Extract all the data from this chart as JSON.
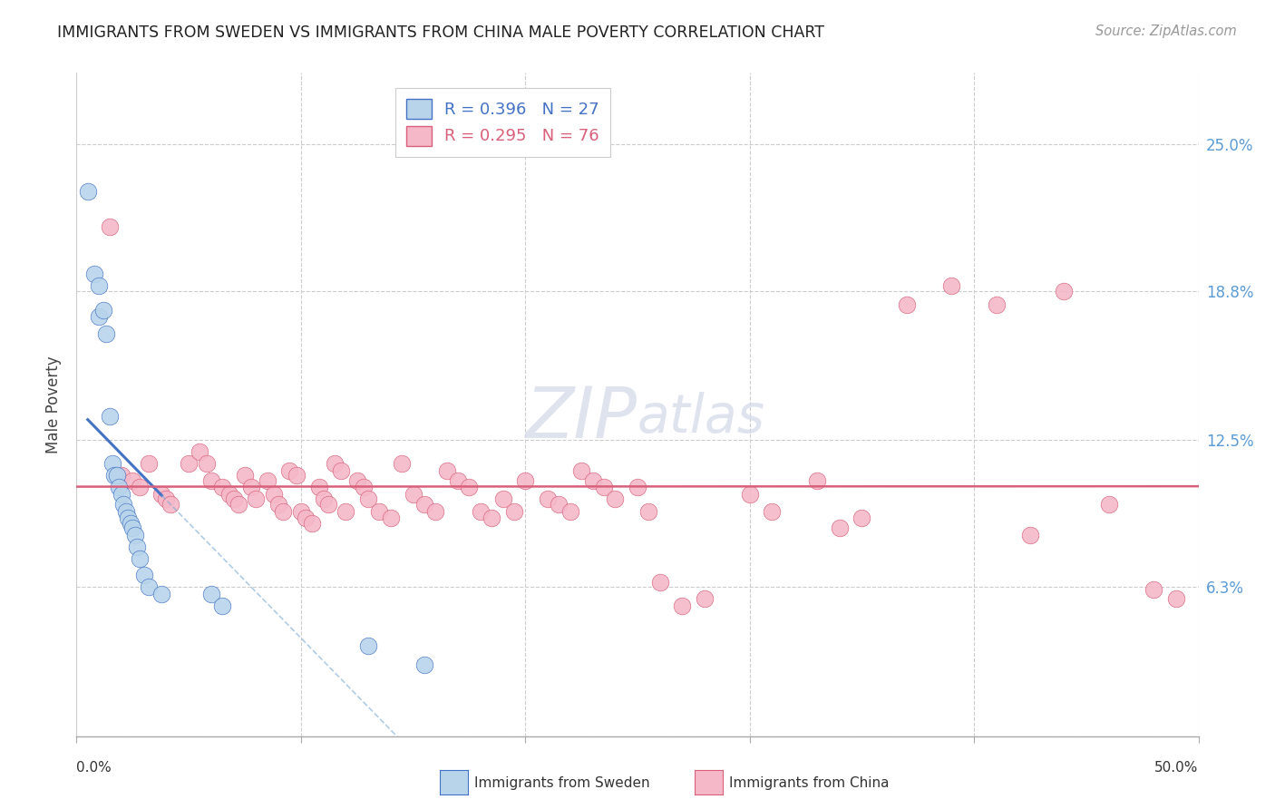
{
  "title": "IMMIGRANTS FROM SWEDEN VS IMMIGRANTS FROM CHINA MALE POVERTY CORRELATION CHART",
  "source": "Source: ZipAtlas.com",
  "ylabel": "Male Poverty",
  "yticks": [
    0.0,
    0.063,
    0.125,
    0.188,
    0.25
  ],
  "ytick_labels": [
    "",
    "6.3%",
    "12.5%",
    "18.8%",
    "25.0%"
  ],
  "xrange": [
    0.0,
    0.5
  ],
  "yrange": [
    0.0,
    0.28
  ],
  "legend_sweden": "R = 0.396   N = 27",
  "legend_china": "R = 0.295   N = 76",
  "sweden_color": "#b8d4eb",
  "china_color": "#f5b8c8",
  "sweden_line_color": "#4472c4",
  "china_line_color": "#d9607a",
  "watermark_color": "#d0d8e8",
  "sweden_x": [
    0.005,
    0.008,
    0.01,
    0.01,
    0.012,
    0.013,
    0.015,
    0.016,
    0.017,
    0.018,
    0.019,
    0.02,
    0.021,
    0.022,
    0.023,
    0.024,
    0.025,
    0.026,
    0.027,
    0.028,
    0.03,
    0.032,
    0.038,
    0.06,
    0.065,
    0.13,
    0.155
  ],
  "sweden_y": [
    0.23,
    0.195,
    0.19,
    0.177,
    0.18,
    0.17,
    0.135,
    0.115,
    0.11,
    0.11,
    0.105,
    0.102,
    0.098,
    0.095,
    0.092,
    0.09,
    0.088,
    0.085,
    0.08,
    0.075,
    0.068,
    0.063,
    0.06,
    0.06,
    0.055,
    0.038,
    0.03
  ],
  "china_x": [
    0.015,
    0.02,
    0.025,
    0.028,
    0.032,
    0.038,
    0.04,
    0.042,
    0.05,
    0.055,
    0.058,
    0.06,
    0.065,
    0.068,
    0.07,
    0.072,
    0.075,
    0.078,
    0.08,
    0.085,
    0.088,
    0.09,
    0.092,
    0.095,
    0.098,
    0.1,
    0.102,
    0.105,
    0.108,
    0.11,
    0.112,
    0.115,
    0.118,
    0.12,
    0.125,
    0.128,
    0.13,
    0.135,
    0.14,
    0.145,
    0.15,
    0.155,
    0.16,
    0.165,
    0.17,
    0.175,
    0.18,
    0.185,
    0.19,
    0.195,
    0.2,
    0.21,
    0.215,
    0.22,
    0.225,
    0.23,
    0.235,
    0.24,
    0.25,
    0.255,
    0.26,
    0.27,
    0.28,
    0.3,
    0.31,
    0.33,
    0.34,
    0.35,
    0.37,
    0.39,
    0.41,
    0.425,
    0.44,
    0.46,
    0.48,
    0.49
  ],
  "china_y": [
    0.215,
    0.11,
    0.108,
    0.105,
    0.115,
    0.102,
    0.1,
    0.098,
    0.115,
    0.12,
    0.115,
    0.108,
    0.105,
    0.102,
    0.1,
    0.098,
    0.11,
    0.105,
    0.1,
    0.108,
    0.102,
    0.098,
    0.095,
    0.112,
    0.11,
    0.095,
    0.092,
    0.09,
    0.105,
    0.1,
    0.098,
    0.115,
    0.112,
    0.095,
    0.108,
    0.105,
    0.1,
    0.095,
    0.092,
    0.115,
    0.102,
    0.098,
    0.095,
    0.112,
    0.108,
    0.105,
    0.095,
    0.092,
    0.1,
    0.095,
    0.108,
    0.1,
    0.098,
    0.095,
    0.112,
    0.108,
    0.105,
    0.1,
    0.105,
    0.095,
    0.065,
    0.055,
    0.058,
    0.102,
    0.095,
    0.108,
    0.088,
    0.092,
    0.182,
    0.19,
    0.182,
    0.085,
    0.188,
    0.098,
    0.062,
    0.058
  ]
}
